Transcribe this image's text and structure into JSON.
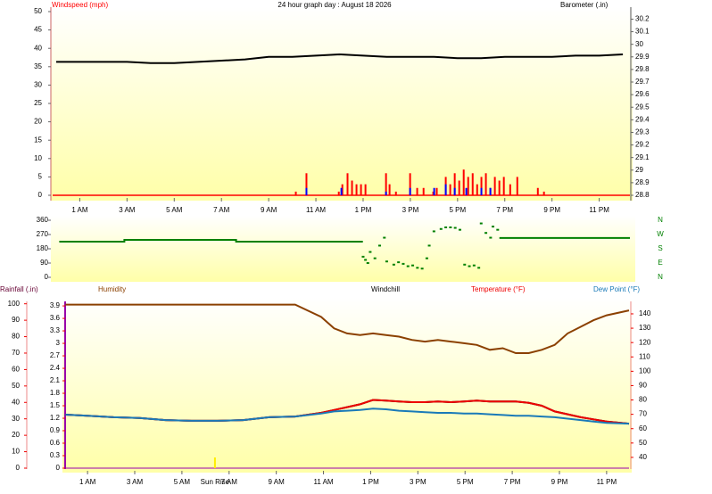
{
  "chart_data": [
    {
      "type": "bar",
      "title": "24 hour graph day : August 18 2026",
      "ylabel": "Windspeed (mph)",
      "y2label": "Barometer (.in)",
      "xlim": [
        -0.15,
        24.3
      ],
      "xticks": [
        {
          "value": 1,
          "label": "1 AM"
        },
        {
          "value": 3,
          "label": "3 AM"
        },
        {
          "value": 5,
          "label": "5 AM"
        },
        {
          "value": 7,
          "label": "7 AM"
        },
        {
          "value": 9,
          "label": "9 AM"
        },
        {
          "value": 11,
          "label": "11 AM"
        },
        {
          "value": 13,
          "label": "1 PM"
        },
        {
          "value": 15,
          "label": "3 PM"
        },
        {
          "value": 17,
          "label": "5 PM"
        },
        {
          "value": 19,
          "label": "7 PM"
        },
        {
          "value": 21,
          "label": "9 PM"
        },
        {
          "value": 23,
          "label": "11 PM"
        }
      ],
      "ylim": [
        0,
        50
      ],
      "yticks": [
        0,
        5,
        10,
        15,
        20,
        25,
        30,
        35,
        40,
        45,
        50
      ],
      "y2lim": [
        28.8,
        30.26
      ],
      "y2ticks": [
        28.8,
        28.9,
        29,
        29.1,
        29.2,
        29.3,
        29.4,
        29.5,
        29.6,
        29.7,
        29.8,
        29.9,
        30,
        30.1,
        30.2
      ],
      "series": [
        {
          "style": "bar",
          "color": "#ff0000",
          "x": [
            10.15,
            10.6,
            11.97,
            12.12,
            12.34,
            12.53,
            12.72,
            12.91,
            13.1,
            13.97,
            14.12,
            14.39,
            14.99,
            15.29,
            15.56,
            15.97,
            16.12,
            16.5,
            16.69,
            16.88,
            17.07,
            17.26,
            17.45,
            17.64,
            17.83,
            18.01,
            18.2,
            18.39,
            18.58,
            18.77,
            18.96,
            19.23,
            19.53,
            20.4,
            20.66
          ],
          "values": [
            1,
            6,
            1,
            3,
            6,
            4,
            3,
            3,
            3,
            6,
            3,
            1,
            6,
            2,
            2,
            1,
            2,
            5,
            3,
            6,
            4,
            7,
            5,
            6,
            3,
            5,
            6,
            2,
            5,
            4,
            5,
            3,
            5,
            2,
            1
          ]
        },
        {
          "style": "bar",
          "color": "#0000ff",
          "x": [
            10.6,
            12.08,
            13.97,
            14.99,
            16.01,
            16.5,
            16.88,
            17.37,
            18.01,
            18.39
          ],
          "values": [
            2,
            2,
            1,
            2,
            2,
            3,
            2,
            2,
            2,
            2
          ]
        },
        {
          "style": "line",
          "axis": "y2",
          "color": "#000000",
          "x": [
            0,
            1,
            2,
            3,
            4,
            5,
            6,
            7,
            8,
            9,
            10,
            11,
            12,
            13,
            14,
            15,
            16,
            17,
            18,
            19,
            20,
            21,
            22,
            23,
            24
          ],
          "values": [
            29.86,
            29.86,
            29.86,
            29.86,
            29.85,
            29.85,
            29.86,
            29.87,
            29.88,
            29.9,
            29.9,
            29.91,
            29.92,
            29.91,
            29.9,
            29.9,
            29.9,
            29.89,
            29.89,
            29.9,
            29.9,
            29.9,
            29.91,
            29.91,
            29.92
          ]
        }
      ]
    },
    {
      "type": "scatter",
      "xlim": [
        -0.15,
        24.3
      ],
      "ylim": [
        0,
        360
      ],
      "yticks": [
        0,
        90,
        180,
        270,
        360
      ],
      "y2lim": [
        0,
        360
      ],
      "y2ticks": [
        {
          "value": 0,
          "label": "N"
        },
        {
          "value": 90,
          "label": "E"
        },
        {
          "value": 180,
          "label": "S"
        },
        {
          "value": 270,
          "label": "W"
        },
        {
          "value": 360,
          "label": "N"
        }
      ],
      "series": [
        {
          "style": "line",
          "color": "#008000",
          "x": [
            0.13,
            2.89,
            2.89,
            7.62,
            7.62,
            12.99,
            15,
            18.77,
            24.3
          ],
          "values": [
            225,
            225,
            236,
            236,
            225,
            225,
            null,
            248,
            248
          ]
        },
        {
          "style": "scatter",
          "color": "#008000",
          "x": [
            13.0,
            13.1,
            13.2,
            13.3,
            13.5,
            13.7,
            13.9,
            14.0,
            14.3,
            14.5,
            14.7,
            14.9,
            15.1,
            15.3,
            15.5,
            15.7,
            15.8,
            16.0,
            16.3,
            16.5,
            16.7,
            16.9,
            17.1,
            17.3,
            17.5,
            17.7,
            17.9,
            18.0,
            18.2,
            18.4,
            18.5,
            18.7
          ],
          "values": [
            130,
            110,
            90,
            160,
            120,
            200,
            250,
            100,
            80,
            95,
            85,
            70,
            75,
            60,
            55,
            120,
            200,
            290,
            305,
            315,
            315,
            312,
            300,
            80,
            70,
            75,
            60,
            340,
            280,
            250,
            320,
            300
          ]
        }
      ]
    },
    {
      "type": "line",
      "y3label": "Rainfall (.in)",
      "xlim": [
        0.05,
        23.95
      ],
      "xticks": [
        {
          "value": 1,
          "label": "1 AM"
        },
        {
          "value": 3,
          "label": "3 AM"
        },
        {
          "value": 5,
          "label": "5 AM"
        },
        {
          "value": 7,
          "label": "7 AM"
        },
        {
          "value": 9,
          "label": "9 AM"
        },
        {
          "value": 11,
          "label": "11 AM"
        },
        {
          "value": 13,
          "label": "1 PM"
        },
        {
          "value": 15,
          "label": "3 PM"
        },
        {
          "value": 17,
          "label": "5 PM"
        },
        {
          "value": 19,
          "label": "7 PM"
        },
        {
          "value": 21,
          "label": "9 PM"
        },
        {
          "value": 23,
          "label": "11 PM"
        }
      ],
      "ylim": [
        0,
        102
      ],
      "yticks": [
        0,
        10,
        20,
        30,
        40,
        50,
        60,
        70,
        80,
        90,
        100
      ],
      "y3lim": [
        0,
        4.03
      ],
      "y3ticks": [
        0,
        0.3,
        0.6,
        0.9,
        1.2,
        1.5,
        1.8,
        2.1,
        2.4,
        2.7,
        3,
        3.3,
        3.6,
        3.9
      ],
      "y2lim": [
        32.5,
        149.3
      ],
      "y2ticks": [
        40,
        50,
        60,
        70,
        80,
        90,
        100,
        110,
        120,
        130,
        140
      ],
      "annotations": [
        {
          "text": "Sun Rise",
          "x": 6.4
        }
      ],
      "series": [
        {
          "name": "Humidity",
          "color": "#8b4000",
          "x": [
            0.06,
            1.0,
            2.1,
            3.2,
            4.3,
            5.4,
            6.5,
            7.6,
            8.7,
            9.8,
            10.9,
            11.45,
            12.0,
            12.55,
            13.1,
            13.65,
            14.2,
            14.75,
            15.3,
            15.85,
            16.4,
            16.95,
            17.5,
            18.05,
            18.6,
            19.15,
            19.7,
            20.25,
            20.8,
            21.35,
            21.9,
            22.45,
            23.0,
            23.95
          ],
          "values": [
            99.5,
            99.5,
            99.5,
            99.5,
            99.5,
            99.5,
            99.5,
            99.5,
            99.5,
            99.5,
            92,
            85,
            82,
            81,
            82,
            81,
            80,
            78,
            77,
            78,
            77,
            76,
            75,
            72,
            73,
            70,
            70,
            72,
            75,
            82,
            86,
            90,
            93,
            96
          ]
        },
        {
          "name": "Windchill",
          "color": "#000000",
          "axis": "y2",
          "x": [
            0.06,
            1.0,
            2.1,
            3.2,
            4.3,
            5.4,
            6.5,
            7.6,
            8.7,
            9.8,
            10.9,
            11.45,
            12.0,
            12.55,
            13.1,
            13.65,
            14.2,
            14.75,
            15.3,
            15.85,
            16.4,
            16.95,
            17.5,
            18.05,
            18.6,
            19.15,
            19.7,
            20.25,
            20.8,
            21.35,
            21.9,
            22.45,
            23.0,
            23.95
          ],
          "values": [
            69.8,
            69,
            68,
            67.5,
            66,
            65.5,
            65.5,
            66,
            68,
            68.5,
            71,
            73,
            75,
            77,
            80,
            79.5,
            79,
            78.5,
            78.5,
            79,
            78.5,
            79,
            79.5,
            79,
            79,
            79,
            78,
            76,
            72,
            70,
            68,
            66.5,
            65,
            63.5
          ]
        },
        {
          "name": "Temperature (°F)",
          "color": "#ee0000",
          "axis": "y2",
          "x": [
            0.06,
            1.0,
            2.1,
            3.2,
            4.3,
            5.4,
            6.5,
            7.6,
            8.7,
            9.8,
            10.9,
            11.45,
            12.0,
            12.55,
            13.1,
            13.65,
            14.2,
            14.75,
            15.3,
            15.85,
            16.4,
            16.95,
            17.5,
            18.05,
            18.6,
            19.15,
            19.7,
            20.25,
            20.8,
            21.35,
            21.9,
            22.45,
            23.0,
            23.95
          ],
          "values": [
            69.8,
            69,
            68,
            67.5,
            66,
            65.5,
            65.5,
            66,
            68,
            68.5,
            71,
            73,
            75,
            77,
            80,
            79.5,
            79,
            78.5,
            78.5,
            79,
            78.5,
            79,
            79.5,
            79,
            79,
            79,
            78,
            76,
            72,
            70,
            68,
            66.5,
            65,
            63.5
          ]
        },
        {
          "name": "Dew Point (°F)",
          "color": "#1a7ab8",
          "axis": "y2",
          "x": [
            0.06,
            1.0,
            2.1,
            3.2,
            4.3,
            5.4,
            6.5,
            7.6,
            8.7,
            9.8,
            10.9,
            11.45,
            12.0,
            12.55,
            13.1,
            13.65,
            14.2,
            14.75,
            15.3,
            15.85,
            16.4,
            16.95,
            17.5,
            18.05,
            18.6,
            19.15,
            19.7,
            20.25,
            20.8,
            21.35,
            21.9,
            22.45,
            23.0,
            23.95
          ],
          "values": [
            69.8,
            69,
            68,
            67.5,
            66,
            65.5,
            65.5,
            66,
            68,
            68.5,
            70.5,
            72,
            72.5,
            73,
            74,
            73.5,
            72.5,
            72,
            71.5,
            71,
            71,
            70.5,
            70.5,
            70,
            69.5,
            69,
            69,
            68.5,
            68,
            67,
            66,
            65,
            64,
            63.5
          ]
        }
      ]
    }
  ]
}
